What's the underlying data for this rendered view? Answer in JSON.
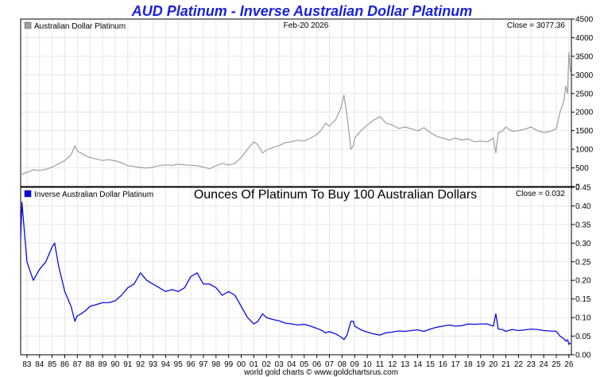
{
  "title": "AUD Platinum - Inverse Australian Dollar Platinum",
  "footer": "world gold charts © www.goldchartsrus.com",
  "colors": {
    "title": "#1a22d8",
    "upper_series": "#9e9e9e",
    "lower_series": "#0a0ae6",
    "grid": "#e6e6e6"
  },
  "chart_data": [
    {
      "type": "line",
      "panel": "upper",
      "legend": "Australian Dollar Platinum",
      "date_label": "Feb-20  2026",
      "close_label": "Close = 3077.36",
      "x_tick_labels": [
        "83",
        "84",
        "85",
        "86",
        "87",
        "88",
        "89",
        "90",
        "91",
        "92",
        "93",
        "94",
        "95",
        "96",
        "97",
        "98",
        "99",
        "00",
        "01",
        "02",
        "03",
        "04",
        "05",
        "06",
        "07",
        "08",
        "09",
        "10",
        "11",
        "12",
        "13",
        "14",
        "15",
        "16",
        "17",
        "18",
        "19",
        "20",
        "21",
        "22",
        "23",
        "24",
        "25",
        "26"
      ],
      "x_range": [
        1982.5,
        2026.2
      ],
      "ylim": [
        0,
        4500
      ],
      "y_ticks": [
        0,
        500,
        1000,
        1500,
        2000,
        2500,
        3000,
        3500,
        4000,
        4500
      ],
      "grid": true,
      "series": [
        {
          "color": "#9e9e9e",
          "x": [
            1982.5,
            1983.0,
            1983.5,
            1984.0,
            1984.5,
            1985.0,
            1985.5,
            1986.0,
            1986.5,
            1986.8,
            1987.0,
            1987.3,
            1987.7,
            1988.0,
            1988.5,
            1989.0,
            1989.5,
            1990.0,
            1990.5,
            1991.0,
            1991.5,
            1992.0,
            1992.5,
            1993.0,
            1993.5,
            1994.0,
            1994.5,
            1995.0,
            1995.5,
            1996.0,
            1996.5,
            1997.0,
            1997.5,
            1998.0,
            1998.5,
            1999.0,
            1999.5,
            2000.0,
            2000.5,
            2001.0,
            2001.3,
            2001.7,
            2002.0,
            2002.5,
            2003.0,
            2003.5,
            2004.0,
            2004.5,
            2005.0,
            2005.5,
            2006.0,
            2006.3,
            2006.7,
            2007.0,
            2007.5,
            2007.9,
            2008.15,
            2008.4,
            2008.7,
            2008.9,
            2009.0,
            2009.5,
            2010.0,
            2010.5,
            2011.0,
            2011.5,
            2012.0,
            2012.5,
            2013.0,
            2013.5,
            2014.0,
            2014.5,
            2015.0,
            2015.5,
            2016.0,
            2016.5,
            2017.0,
            2017.5,
            2018.0,
            2018.5,
            2019.0,
            2019.5,
            2020.0,
            2020.2,
            2020.4,
            2020.7,
            2021.0,
            2021.2,
            2021.5,
            2022.0,
            2022.5,
            2023.0,
            2023.5,
            2024.0,
            2024.5,
            2025.0,
            2025.3,
            2025.6,
            2025.75,
            2025.9,
            2026.0,
            2026.1,
            2026.14
          ],
          "y": [
            320,
            380,
            450,
            430,
            460,
            520,
            610,
            700,
            850,
            1100,
            950,
            900,
            820,
            780,
            740,
            700,
            720,
            690,
            640,
            560,
            540,
            510,
            500,
            520,
            560,
            580,
            570,
            600,
            580,
            570,
            560,
            520,
            480,
            560,
            620,
            580,
            620,
            780,
            1000,
            1200,
            1130,
            900,
            980,
            1050,
            1100,
            1180,
            1200,
            1250,
            1220,
            1300,
            1400,
            1500,
            1700,
            1620,
            1800,
            2100,
            2450,
            1900,
            1000,
            1100,
            1300,
            1500,
            1650,
            1780,
            1880,
            1700,
            1650,
            1560,
            1600,
            1550,
            1500,
            1580,
            1450,
            1350,
            1300,
            1250,
            1300,
            1250,
            1280,
            1200,
            1220,
            1200,
            1300,
            900,
            1450,
            1480,
            1600,
            1550,
            1480,
            1500,
            1540,
            1600,
            1500,
            1450,
            1480,
            1550,
            2000,
            2300,
            2700,
            2500,
            3600,
            3200,
            3077
          ]
        }
      ]
    },
    {
      "type": "line",
      "panel": "lower",
      "legend": "Inverse Australian Dollar Platinum",
      "subtitle": "Ounces Of Platinum To Buy 100 Australian Dollars",
      "close_label": "Close = 0.032",
      "x_tick_labels": [
        "83",
        "84",
        "85",
        "86",
        "87",
        "88",
        "89",
        "90",
        "91",
        "92",
        "93",
        "94",
        "95",
        "96",
        "97",
        "98",
        "99",
        "00",
        "01",
        "02",
        "03",
        "04",
        "05",
        "06",
        "07",
        "08",
        "09",
        "10",
        "11",
        "12",
        "13",
        "14",
        "15",
        "16",
        "17",
        "18",
        "19",
        "20",
        "21",
        "22",
        "23",
        "24",
        "25",
        "26"
      ],
      "x_range": [
        1982.5,
        2026.2
      ],
      "ylim": [
        0,
        0.45
      ],
      "y_ticks": [
        0.0,
        0.05,
        0.1,
        0.15,
        0.2,
        0.25,
        0.3,
        0.35,
        0.4,
        0.45
      ],
      "grid": true,
      "series": [
        {
          "color": "#0a0ae6",
          "x": [
            1982.5,
            1982.6,
            1983.0,
            1983.5,
            1984.0,
            1984.5,
            1985.0,
            1985.2,
            1985.5,
            1986.0,
            1986.5,
            1986.8,
            1987.0,
            1987.3,
            1987.7,
            1988.0,
            1988.5,
            1989.0,
            1989.5,
            1990.0,
            1990.5,
            1991.0,
            1991.5,
            1992.0,
            1992.5,
            1993.0,
            1993.5,
            1994.0,
            1994.5,
            1995.0,
            1995.5,
            1996.0,
            1996.5,
            1997.0,
            1997.5,
            1998.0,
            1998.5,
            1999.0,
            1999.5,
            2000.0,
            2000.5,
            2001.0,
            2001.3,
            2001.7,
            2002.0,
            2002.5,
            2003.0,
            2003.5,
            2004.0,
            2004.5,
            2005.0,
            2005.5,
            2006.0,
            2006.3,
            2006.7,
            2007.0,
            2007.5,
            2007.9,
            2008.15,
            2008.4,
            2008.7,
            2008.9,
            2009.0,
            2009.5,
            2010.0,
            2010.5,
            2011.0,
            2011.5,
            2012.0,
            2012.5,
            2013.0,
            2013.5,
            2014.0,
            2014.5,
            2015.0,
            2015.5,
            2016.0,
            2016.5,
            2017.0,
            2017.5,
            2018.0,
            2018.5,
            2019.0,
            2019.5,
            2020.0,
            2020.2,
            2020.4,
            2020.7,
            2021.0,
            2021.2,
            2021.5,
            2022.0,
            2022.5,
            2023.0,
            2023.5,
            2024.0,
            2024.5,
            2025.0,
            2025.3,
            2025.6,
            2025.75,
            2025.9,
            2026.0,
            2026.1,
            2026.14
          ],
          "y": [
            0.31,
            0.41,
            0.25,
            0.2,
            0.23,
            0.25,
            0.29,
            0.3,
            0.24,
            0.17,
            0.13,
            0.09,
            0.105,
            0.11,
            0.12,
            0.13,
            0.135,
            0.14,
            0.14,
            0.145,
            0.16,
            0.18,
            0.19,
            0.22,
            0.2,
            0.19,
            0.18,
            0.17,
            0.175,
            0.17,
            0.18,
            0.21,
            0.22,
            0.19,
            0.19,
            0.18,
            0.16,
            0.17,
            0.16,
            0.13,
            0.1,
            0.083,
            0.089,
            0.11,
            0.1,
            0.095,
            0.091,
            0.085,
            0.083,
            0.08,
            0.082,
            0.077,
            0.071,
            0.067,
            0.059,
            0.062,
            0.056,
            0.048,
            0.041,
            0.053,
            0.09,
            0.09,
            0.077,
            0.067,
            0.061,
            0.056,
            0.053,
            0.059,
            0.061,
            0.064,
            0.063,
            0.065,
            0.067,
            0.063,
            0.069,
            0.074,
            0.077,
            0.08,
            0.077,
            0.078,
            0.083,
            0.082,
            0.083,
            0.083,
            0.077,
            0.11,
            0.069,
            0.068,
            0.063,
            0.065,
            0.068,
            0.065,
            0.067,
            0.069,
            0.068,
            0.065,
            0.064,
            0.063,
            0.05,
            0.043,
            0.037,
            0.04,
            0.028,
            0.031,
            0.032
          ]
        }
      ]
    }
  ]
}
